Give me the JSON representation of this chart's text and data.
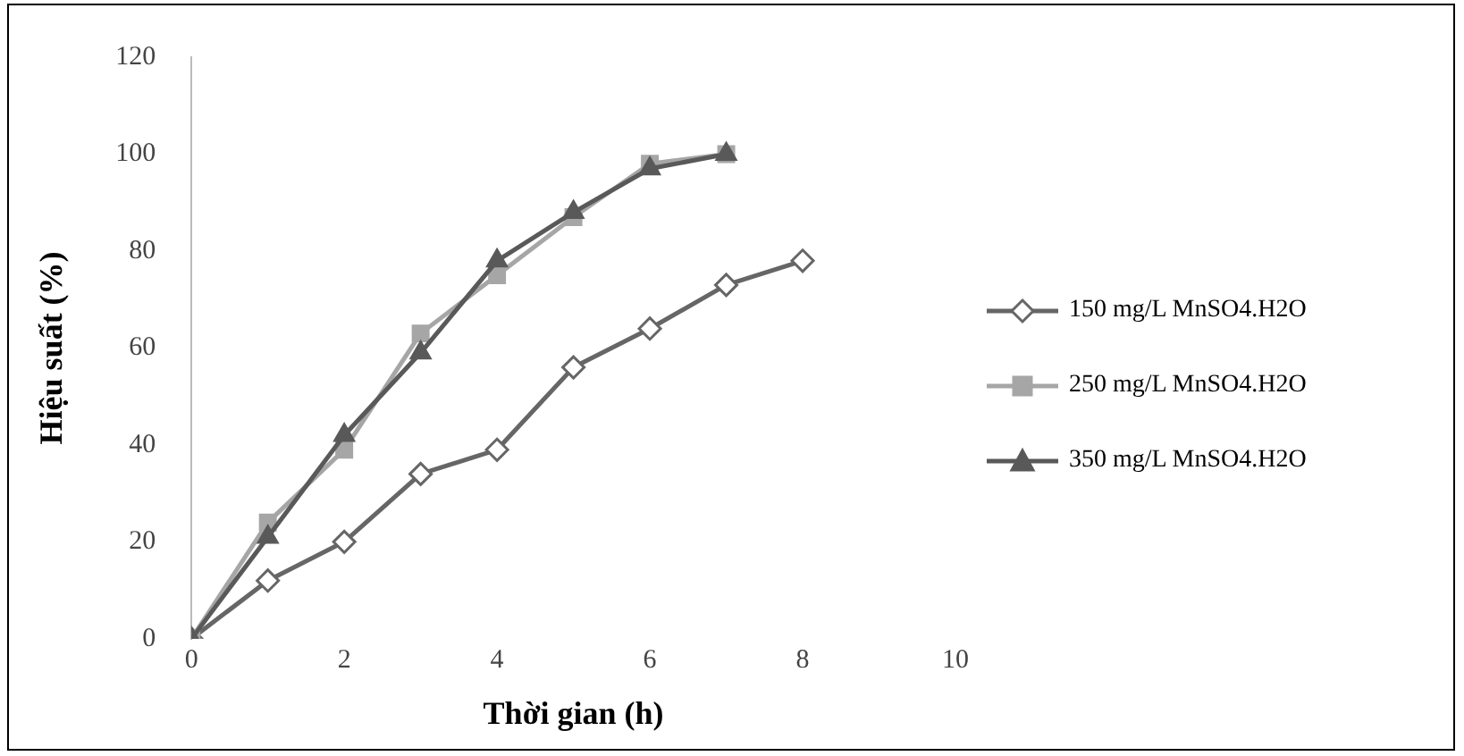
{
  "chart_data": {
    "type": "line",
    "xlabel": "Thời gian (h)",
    "ylabel": "Hiệu suất (%)",
    "x": [
      0,
      1,
      2,
      3,
      4,
      5,
      6,
      7,
      8
    ],
    "xlim": [
      0,
      10
    ],
    "xticks": [
      0,
      2,
      4,
      6,
      8,
      10
    ],
    "ylim": [
      0,
      120
    ],
    "yticks": [
      0,
      20,
      40,
      60,
      80,
      100,
      120
    ],
    "grid": false,
    "legend": "right",
    "series": [
      {
        "name": "150 mg/L MnSO4.H2O",
        "color": "#666666",
        "marker": "diamond",
        "values": [
          0,
          12,
          20,
          34,
          39,
          56,
          64,
          73,
          78
        ]
      },
      {
        "name": "250 mg/L MnSO4.H2O",
        "color": "#a6a6a6",
        "marker": "square",
        "values": [
          0,
          24,
          39,
          63,
          75,
          87,
          98,
          100,
          null
        ]
      },
      {
        "name": "350 mg/L MnSO4.H2O",
        "color": "#595959",
        "marker": "triangle",
        "values": [
          0,
          21,
          42,
          59,
          78,
          88,
          97,
          100,
          null
        ]
      }
    ]
  }
}
